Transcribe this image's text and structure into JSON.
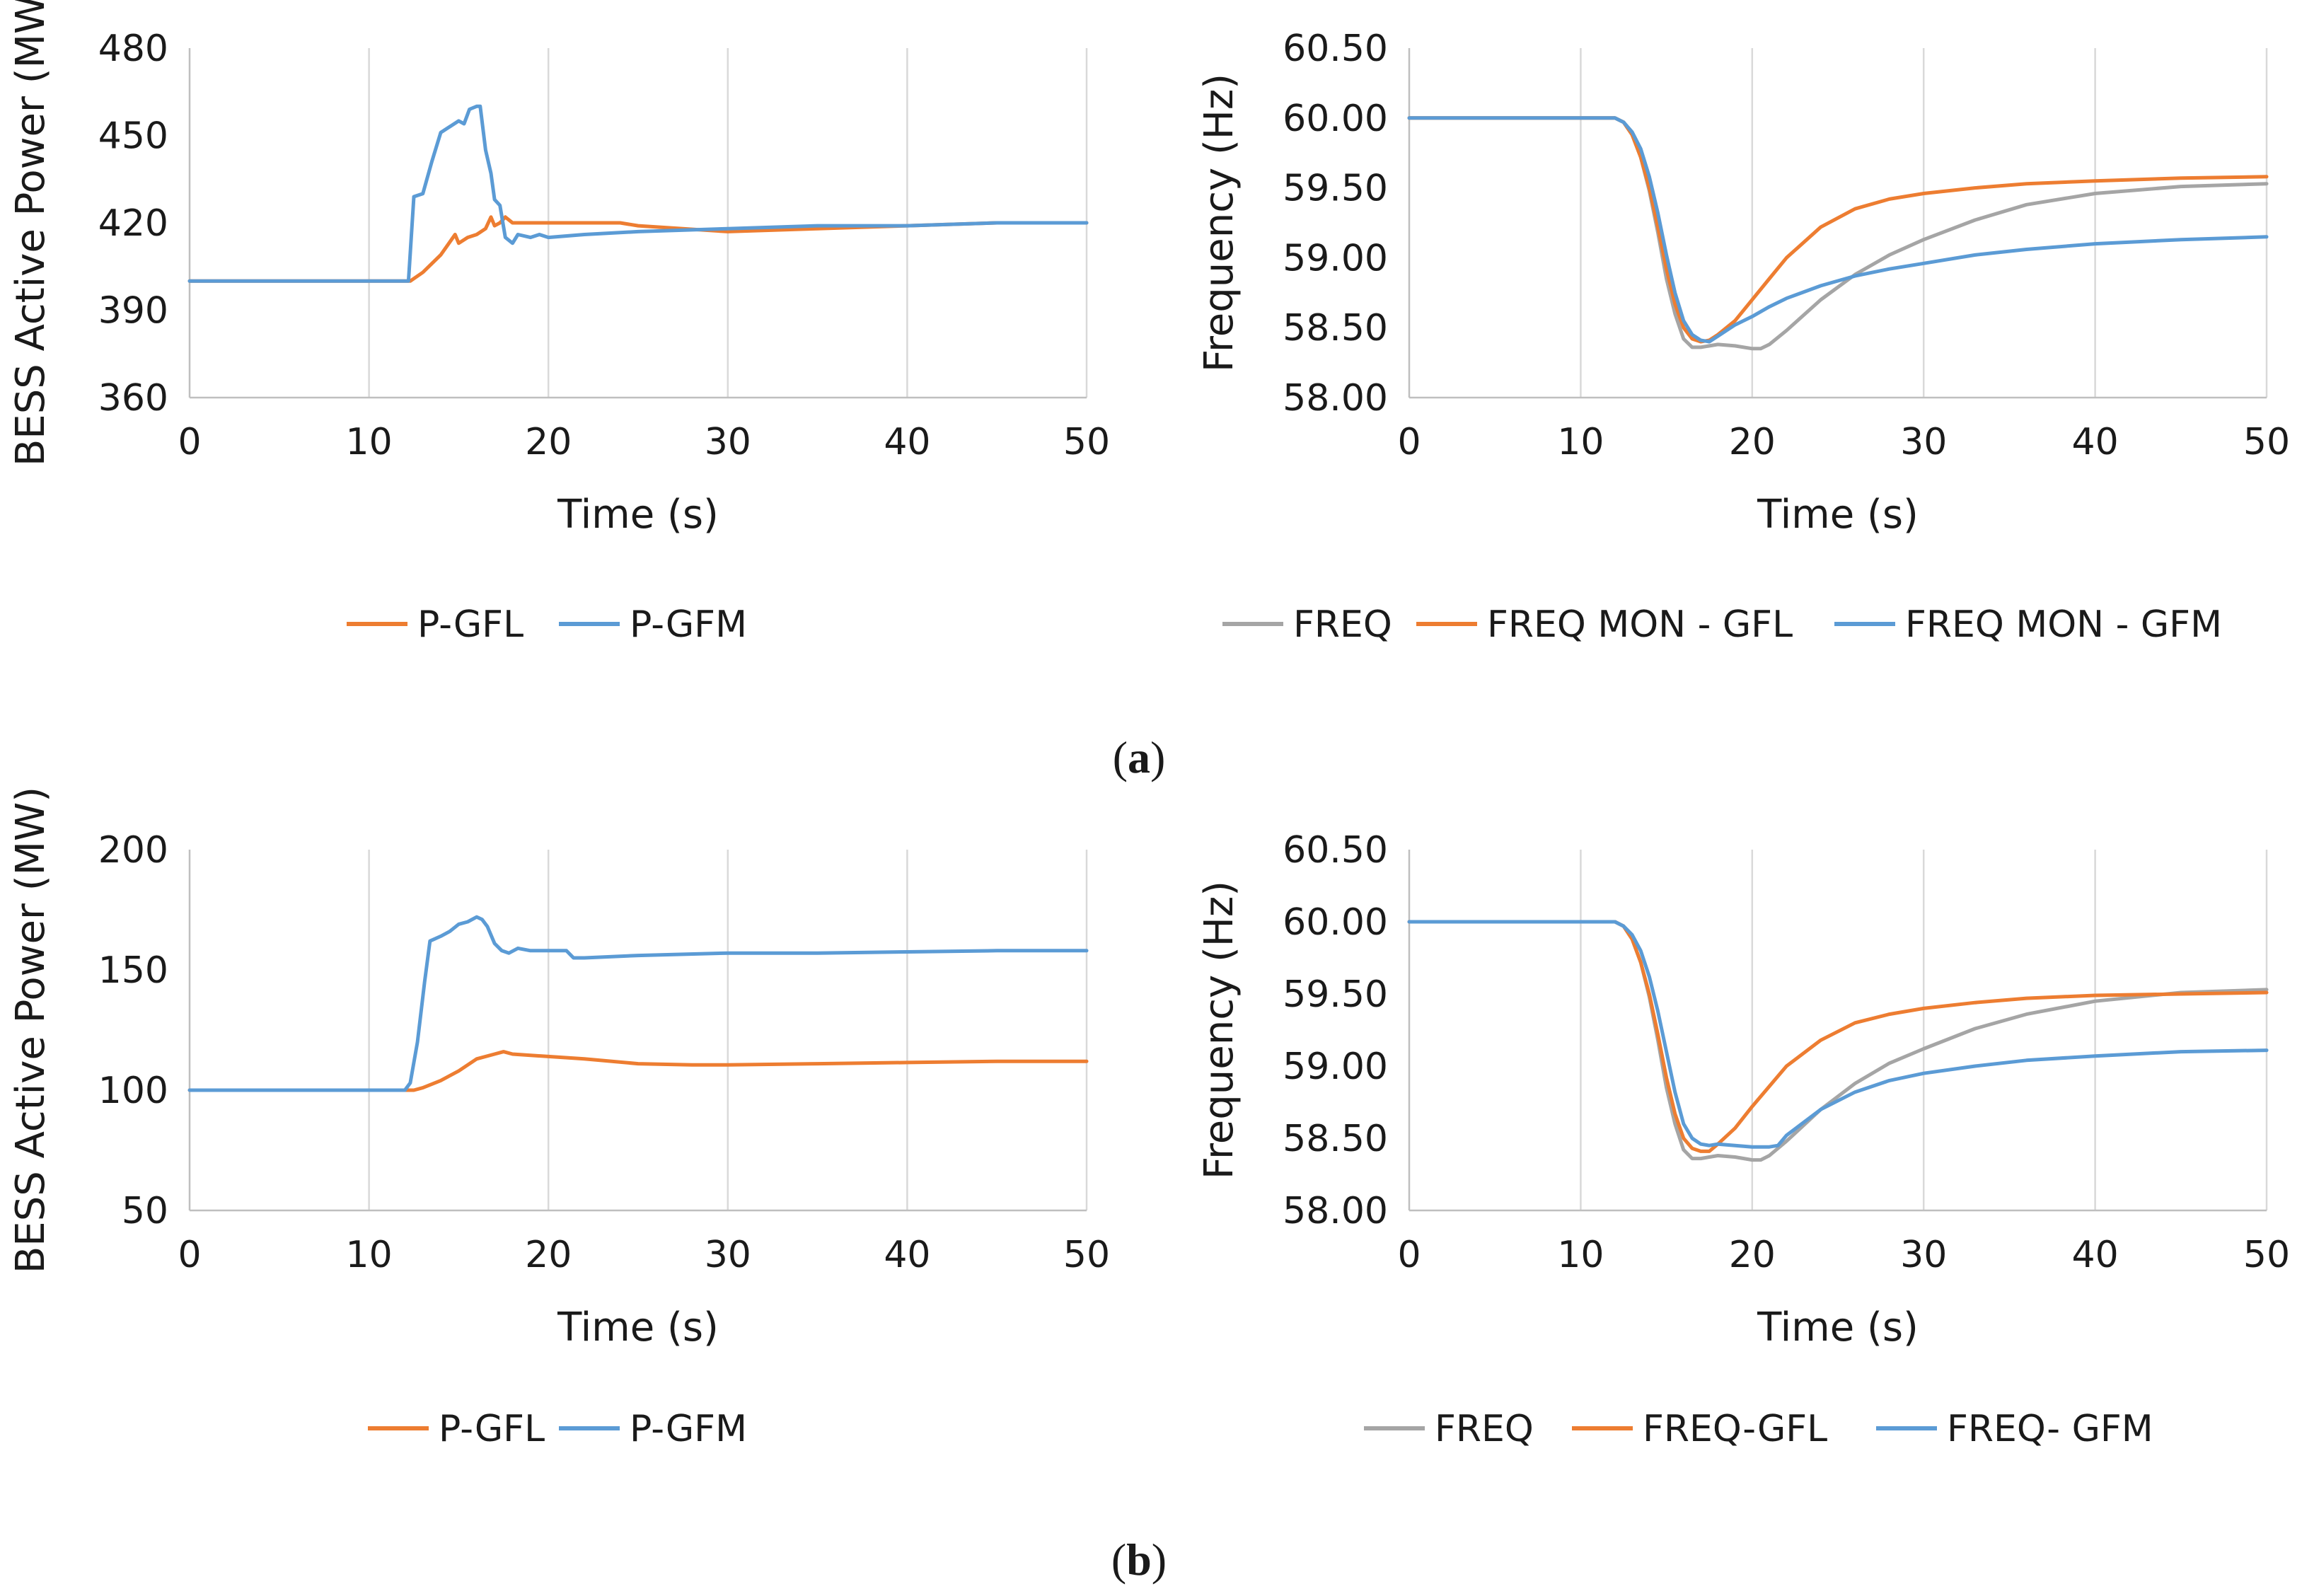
{
  "panels": [
    {
      "label": "(",
      "letter": "a",
      "close": ")"
    },
    {
      "label": "(",
      "letter": "b",
      "close": ")"
    }
  ],
  "colors": {
    "gray": "#a5a5a5",
    "orange": "#ed7d31",
    "blue": "#5b9bd5",
    "grid": "#d9d9d9",
    "axis": "#bfbfbf"
  },
  "chart_data": [
    {
      "id": "a-power",
      "type": "line",
      "xlabel": "Time (s)",
      "ylabel": "BESS Active Power (MW)",
      "xlim": [
        0,
        50
      ],
      "ylim": [
        360,
        480
      ],
      "xticks": [
        0,
        10,
        20,
        30,
        40,
        50
      ],
      "yticks": [
        360,
        390,
        420,
        450,
        480
      ],
      "ytick_labels": [
        "360",
        "390",
        "420",
        "450",
        "480"
      ],
      "grid": "vertical",
      "legend": "bottom",
      "series": [
        {
          "name": "P-GFL",
          "color": "orange",
          "x": [
            0,
            12,
            12.3,
            13,
            14,
            14.8,
            15,
            15.5,
            16,
            16.5,
            16.8,
            17,
            17.3,
            17.6,
            18,
            20,
            24,
            25,
            30,
            35,
            40,
            45,
            50
          ],
          "y": [
            400,
            400,
            400,
            403,
            409,
            416,
            413,
            415,
            416,
            418,
            422,
            419,
            420,
            422,
            420,
            420,
            420,
            419,
            417,
            418,
            419,
            420,
            420
          ]
        },
        {
          "name": "P-GFM",
          "color": "blue",
          "x": [
            0,
            12,
            12.2,
            12.5,
            13,
            13.5,
            14,
            14.5,
            15,
            15.3,
            15.6,
            16,
            16.2,
            16.5,
            16.8,
            17,
            17.3,
            17.6,
            18,
            18.3,
            19,
            19.5,
            20,
            22,
            25,
            30,
            35,
            40,
            45,
            50
          ],
          "y": [
            400,
            400,
            400,
            429,
            430,
            441,
            451,
            453,
            455,
            454,
            459,
            460,
            460,
            445,
            437,
            428,
            426,
            415,
            413,
            416,
            415,
            416,
            415,
            416,
            417,
            418,
            419,
            419,
            420,
            420
          ]
        }
      ]
    },
    {
      "id": "a-freq",
      "type": "line",
      "xlabel": "Time (s)",
      "ylabel": "Frequency (Hz)",
      "xlim": [
        0,
        50
      ],
      "ylim": [
        58.0,
        60.5
      ],
      "xticks": [
        0,
        10,
        20,
        30,
        40,
        50
      ],
      "yticks": [
        58.0,
        58.5,
        59.0,
        59.5,
        60.0,
        60.5
      ],
      "ytick_labels": [
        "58.00",
        "58.50",
        "59.00",
        "59.50",
        "60.00",
        "60.50"
      ],
      "grid": "vertical",
      "legend": "bottom",
      "series": [
        {
          "name": "FREQ",
          "color": "gray",
          "x": [
            0,
            12,
            12.5,
            13,
            13.5,
            14,
            14.5,
            15,
            15.5,
            16,
            16.5,
            17,
            18,
            19,
            20,
            20.5,
            21,
            22,
            24,
            26,
            28,
            30,
            33,
            36,
            40,
            45,
            50
          ],
          "y": [
            60.0,
            60.0,
            59.97,
            59.88,
            59.72,
            59.48,
            59.18,
            58.85,
            58.6,
            58.42,
            58.36,
            58.36,
            58.38,
            58.37,
            58.35,
            58.35,
            58.38,
            58.48,
            58.7,
            58.88,
            59.02,
            59.13,
            59.27,
            59.38,
            59.46,
            59.51,
            59.53
          ]
        },
        {
          "name": "FREQ MON - GFL",
          "color": "orange",
          "x": [
            0,
            12,
            12.5,
            13,
            13.5,
            14,
            14.5,
            15,
            15.5,
            16,
            16.5,
            17,
            17.5,
            18,
            19,
            20,
            21,
            22,
            24,
            26,
            28,
            30,
            33,
            36,
            40,
            45,
            50
          ],
          "y": [
            60.0,
            60.0,
            59.97,
            59.88,
            59.72,
            59.5,
            59.22,
            58.92,
            58.67,
            58.5,
            58.42,
            58.4,
            58.41,
            58.45,
            58.55,
            58.7,
            58.85,
            59.0,
            59.22,
            59.35,
            59.42,
            59.46,
            59.5,
            59.53,
            59.55,
            59.57,
            59.58
          ]
        },
        {
          "name": "FREQ MON - GFM",
          "color": "blue",
          "x": [
            0,
            12,
            12.5,
            13,
            13.5,
            14,
            14.5,
            15,
            15.5,
            16,
            16.5,
            17,
            17.5,
            18,
            19,
            20,
            21,
            22,
            24,
            26,
            28,
            30,
            33,
            36,
            40,
            45,
            50
          ],
          "y": [
            60.0,
            60.0,
            59.97,
            59.9,
            59.78,
            59.58,
            59.32,
            59.02,
            58.75,
            58.55,
            58.45,
            58.41,
            58.4,
            58.44,
            58.52,
            58.58,
            58.65,
            58.71,
            58.8,
            58.87,
            58.92,
            58.96,
            59.02,
            59.06,
            59.1,
            59.13,
            59.15
          ]
        }
      ]
    },
    {
      "id": "b-power",
      "type": "line",
      "xlabel": "Time (s)",
      "ylabel": "BESS Active Power (MW)",
      "xlim": [
        0,
        50
      ],
      "ylim": [
        50,
        200
      ],
      "xticks": [
        0,
        10,
        20,
        30,
        40,
        50
      ],
      "yticks": [
        50,
        100,
        150,
        200
      ],
      "ytick_labels": [
        "50",
        "100",
        "150",
        "200"
      ],
      "grid": "vertical",
      "legend": "bottom",
      "series": [
        {
          "name": "P-GFL",
          "color": "orange",
          "x": [
            0,
            12,
            12.5,
            13,
            14,
            15,
            16,
            17,
            17.5,
            18,
            20,
            22,
            25,
            28,
            30,
            35,
            40,
            45,
            50
          ],
          "y": [
            100,
            100,
            100,
            101,
            104,
            108,
            113,
            115,
            116,
            115,
            114,
            113,
            111,
            110.5,
            110.5,
            111,
            111.5,
            112,
            112
          ]
        },
        {
          "name": "P-GFM",
          "color": "blue",
          "x": [
            0,
            12,
            12.3,
            12.7,
            13.1,
            13.4,
            14,
            14.5,
            15,
            15.5,
            16,
            16.3,
            16.6,
            17,
            17.4,
            17.8,
            18.3,
            19,
            20,
            21,
            21.4,
            22,
            25,
            30,
            35,
            40,
            45,
            50
          ],
          "y": [
            100,
            100,
            103,
            120,
            145,
            162,
            164,
            166,
            169,
            170,
            172,
            171,
            168,
            161,
            158,
            157,
            159,
            158,
            158,
            158,
            155,
            155,
            156,
            157,
            157,
            157.5,
            158,
            158
          ]
        }
      ]
    },
    {
      "id": "b-freq",
      "type": "line",
      "xlabel": "Time (s)",
      "ylabel": "Frequency (Hz)",
      "xlim": [
        0,
        50
      ],
      "ylim": [
        58.0,
        60.5
      ],
      "xticks": [
        0,
        10,
        20,
        30,
        40,
        50
      ],
      "yticks": [
        58.0,
        58.5,
        59.0,
        59.5,
        60.0,
        60.5
      ],
      "ytick_labels": [
        "58.00",
        "58.50",
        "59.00",
        "59.50",
        "60.00",
        "60.50"
      ],
      "grid": "vertical",
      "legend": "bottom",
      "series": [
        {
          "name": "FREQ",
          "color": "gray",
          "x": [
            0,
            12,
            12.5,
            13,
            13.5,
            14,
            14.5,
            15,
            15.5,
            16,
            16.5,
            17,
            18,
            19,
            20,
            20.5,
            21,
            22,
            24,
            26,
            28,
            30,
            33,
            36,
            40,
            45,
            50
          ],
          "y": [
            60.0,
            60.0,
            59.97,
            59.88,
            59.72,
            59.48,
            59.18,
            58.85,
            58.6,
            58.42,
            58.36,
            58.36,
            58.38,
            58.37,
            58.35,
            58.35,
            58.38,
            58.48,
            58.7,
            58.88,
            59.02,
            59.12,
            59.26,
            59.36,
            59.45,
            59.51,
            59.53
          ]
        },
        {
          "name": "FREQ-GFL",
          "color": "orange",
          "x": [
            0,
            12,
            12.5,
            13,
            13.5,
            14,
            14.5,
            15,
            15.5,
            16,
            16.5,
            17,
            17.5,
            18,
            19,
            20,
            21,
            22,
            24,
            26,
            28,
            30,
            33,
            36,
            40,
            45,
            50
          ],
          "y": [
            60.0,
            60.0,
            59.97,
            59.88,
            59.72,
            59.5,
            59.22,
            58.92,
            58.67,
            58.5,
            58.43,
            58.41,
            58.41,
            58.46,
            58.57,
            58.72,
            58.86,
            59.0,
            59.18,
            59.3,
            59.36,
            59.4,
            59.44,
            59.47,
            59.49,
            59.5,
            59.51
          ]
        },
        {
          "name": "FREQ- GFM",
          "color": "blue",
          "x": [
            0,
            12,
            12.5,
            13,
            13.5,
            14,
            14.5,
            15,
            15.5,
            16,
            16.5,
            17,
            17.5,
            18,
            19,
            20,
            21,
            21.5,
            22,
            24,
            26,
            28,
            30,
            33,
            36,
            40,
            45,
            50
          ],
          "y": [
            60.0,
            60.0,
            59.97,
            59.91,
            59.8,
            59.62,
            59.38,
            59.1,
            58.82,
            58.6,
            58.5,
            58.46,
            58.45,
            58.46,
            58.45,
            58.44,
            58.44,
            58.45,
            58.52,
            58.7,
            58.82,
            58.9,
            58.95,
            59.0,
            59.04,
            59.07,
            59.1,
            59.11
          ]
        }
      ]
    }
  ]
}
